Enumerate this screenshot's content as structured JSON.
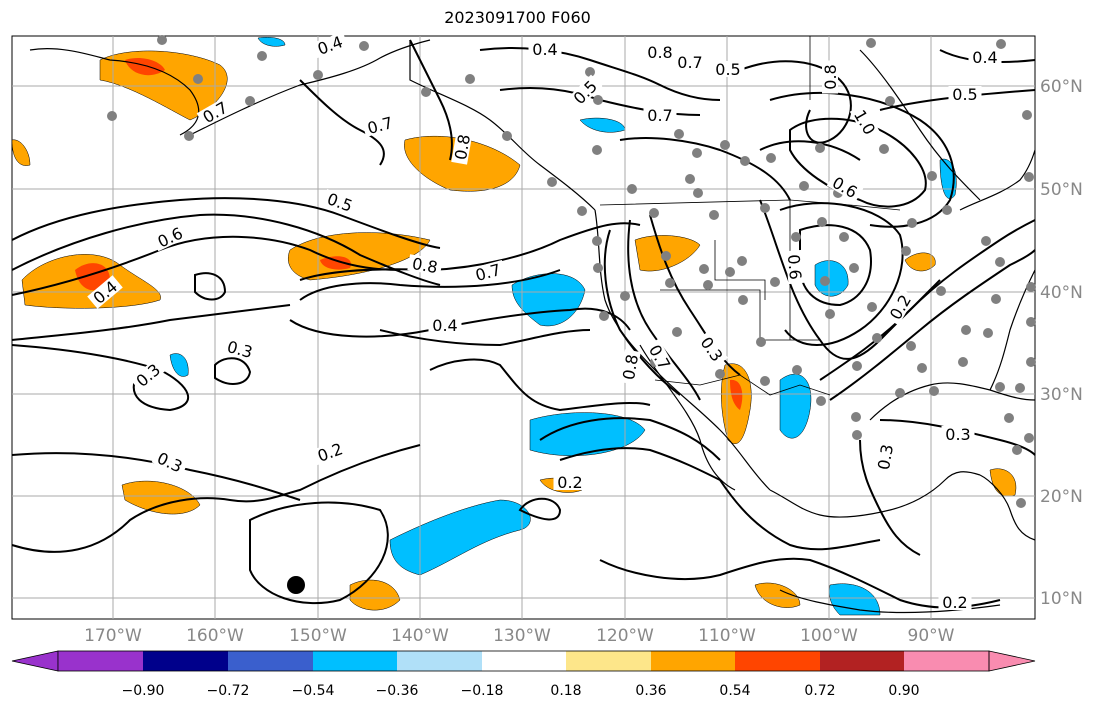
{
  "title": "2023091700 F060",
  "longitude_labels": [
    "170°W",
    "160°W",
    "150°W",
    "140°W",
    "130°W",
    "120°W",
    "110°W",
    "100°W",
    "90°W"
  ],
  "latitude_labels": [
    "60°N",
    "50°N",
    "40°N",
    "30°N",
    "20°N",
    "10°N"
  ],
  "colorbar": {
    "ticks": [
      "−0.90",
      "−0.72",
      "−0.54",
      "−0.36",
      "−0.18",
      "0.18",
      "0.36",
      "0.54",
      "0.72",
      "0.90"
    ],
    "colors": [
      "#9932cc",
      "#00008b",
      "#3a5fcd",
      "#00bfff",
      "#b0e0f8",
      "#ffffff",
      "#fde68a",
      "#ffa500",
      "#ff4500",
      "#b22222",
      "#f98cb0"
    ]
  },
  "contour_labels": [
    "0.4",
    "0.4",
    "0.8",
    "0.7",
    "0.5",
    "0.7",
    "0.5",
    "0.7",
    "0.7",
    "0.8",
    "0.5",
    "0.4",
    "0.8",
    "1.0",
    "0.6",
    "0.5",
    "0.6",
    "0.8",
    "0.7",
    "0.4",
    "0.4",
    "0.3",
    "0.3",
    "0.3",
    "0.2",
    "0.8",
    "0.7",
    "0.3",
    "0.6",
    "0.2",
    "0.3",
    "0.3",
    "0.2",
    "0.2"
  ],
  "colors": {
    "land_outline": "#000000",
    "contour": "#000000",
    "station_dot": "#808080",
    "grid": "#aaaaaa",
    "axis_label": "#888888"
  }
}
